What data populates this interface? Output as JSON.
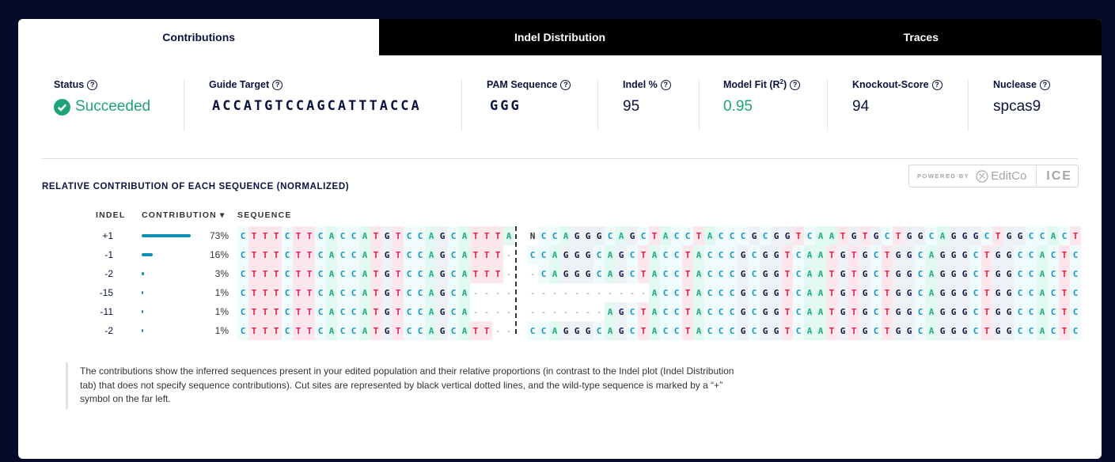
{
  "tabs": [
    {
      "label": "Contributions",
      "active": true
    },
    {
      "label": "Indel Distribution",
      "active": false
    },
    {
      "label": "Traces",
      "active": false
    }
  ],
  "metrics": {
    "status": {
      "label": "Status",
      "value": "Succeeded",
      "icon": "check-circle-icon"
    },
    "guide_target": {
      "label": "Guide Target",
      "value": "ACCATGTCCAGCATTTACCA"
    },
    "pam": {
      "label": "PAM Sequence",
      "value": "GGG"
    },
    "indel_pct": {
      "label": "Indel %",
      "value": "95"
    },
    "model_fit": {
      "label": "Model Fit (R",
      "sup": "2",
      "label_end": ")",
      "value": "0.95"
    },
    "knockout": {
      "label": "Knockout-Score",
      "value": "94"
    },
    "nuclease": {
      "label": "Nuclease",
      "value": "spcas9"
    }
  },
  "help_icon": "?",
  "branding": {
    "powered_by": "POWERED BY",
    "brand": "EditCo",
    "product": "ICE"
  },
  "section_title": "RELATIVE CONTRIBUTION OF EACH SEQUENCE (NORMALIZED)",
  "columns": {
    "indel": "INDEL",
    "contribution": "CONTRIBUTION",
    "sequence": "SEQUENCE",
    "sort_icon": "▾"
  },
  "base_colors": {
    "C": "#1898c4",
    "T": "#e0224d",
    "A": "#1ead82",
    "G": "#0b1340"
  },
  "bar_color": "#0f8fb5",
  "rows": [
    {
      "indel": "+1",
      "contribution": 73,
      "pct": "73%",
      "left": "CTTTCTTCACCATGTCCAGCATTTA",
      "right": "NCCAGGGCAGCTACCTACCCGCGGTCAATGTGCTGGCAGGGCTGGCCACT"
    },
    {
      "indel": "-1",
      "contribution": 16,
      "pct": "16%",
      "left": "CTTTCTTCACCATGTCCAGCATTT-",
      "right": "CCAGGGCAGCTACCTACCCGCGGTCAATGTGCTGGCAGGGCTGGCCACTC"
    },
    {
      "indel": "-2",
      "contribution": 3,
      "pct": "3%",
      "left": "CTTTCTTCACCATGTCCAGCATTT-",
      "right": "-CAGGGCAGCTACCTACCCGCGGTCAATGTGCTGGCAGGGCTGGCCACTC"
    },
    {
      "indel": "-15",
      "contribution": 1,
      "pct": "1%",
      "left": "CTTTCTTCACCATGTCCAGCA----",
      "right": "-----------ACCTACCCGCGGTCAATGTGCTGGCAGGGCTGGCCACTC"
    },
    {
      "indel": "-11",
      "contribution": 1,
      "pct": "1%",
      "left": "CTTTCTTCACCATGTCCAGCA----",
      "right": "-------AGCTACCTACCCGCGGTCAATGTGCTGGCAGGGCTGGCCACTC"
    },
    {
      "indel": "-2",
      "contribution": 1,
      "pct": "1%",
      "left": "CTTTCTTCACCATGTCCAGCATT--",
      "right": "CCAGGGCAGCTACCTACCCGCGGTCAATGTGCTGGCAGGGCTGGCCACTC"
    }
  ],
  "note": "The contributions show the inferred sequences present in your edited population and their relative proportions (in contrast to the Indel plot (Indel Distribution tab) that does not specify sequence contributions). Cut sites are represented by black vertical dotted lines, and the wild-type sequence is marked by a “+” symbol on the far left."
}
